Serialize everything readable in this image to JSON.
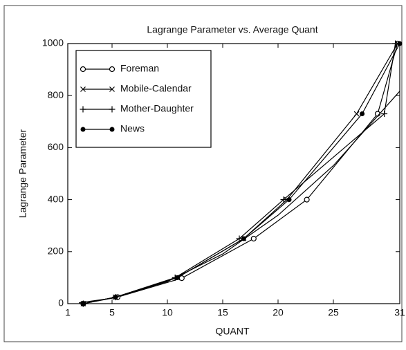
{
  "chart_data": {
    "type": "line",
    "title": "Lagrange Parameter vs. Average Quant",
    "x_label": "QUANT",
    "y_label": "Lagrange Parameter",
    "xlim": [
      1,
      31
    ],
    "ylim": [
      0,
      1000
    ],
    "xticks": [
      1,
      5,
      10,
      15,
      20,
      25,
      31
    ],
    "yticks": [
      0,
      200,
      400,
      600,
      800,
      1000
    ],
    "legend": "upper left",
    "series": [
      {
        "name": "Foreman",
        "color": "#000000",
        "marker": "open-circle",
        "x": [
          2.4,
          5.5,
          11.3,
          17.8,
          22.6,
          29.0,
          30.8
        ],
        "values": [
          0,
          25,
          98,
          250,
          400,
          730,
          1000
        ]
      },
      {
        "name": "Mobile-Calendar",
        "color": "#000000",
        "marker": "cross",
        "x": [
          2.4,
          5.3,
          10.9,
          16.9,
          20.8,
          27.1,
          30.8
        ],
        "values": [
          0,
          25,
          100,
          250,
          400,
          730,
          1000
        ]
      },
      {
        "name": "Mother-Daughter",
        "color": "#000000",
        "marker": "plus",
        "x": [
          2.4,
          5.3,
          10.7,
          16.5,
          20.5,
          29.6,
          30.6
        ],
        "values": [
          0,
          25,
          100,
          250,
          400,
          730,
          1000
        ]
      },
      {
        "name": "News",
        "color": "#000000",
        "marker": "dot",
        "x": [
          2.4,
          5.3,
          10.9,
          16.9,
          21.0,
          27.6,
          31.0
        ],
        "values": [
          0,
          25,
          100,
          250,
          400,
          730,
          1000
        ]
      },
      {
        "color": "#000000",
        "x": [
          2,
          5,
          10,
          15,
          20,
          25,
          31
        ],
        "values": [
          3,
          21,
          85,
          191,
          340,
          531,
          817
        ]
      }
    ]
  }
}
